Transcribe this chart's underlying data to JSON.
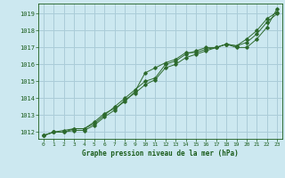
{
  "title": "Graphe pression niveau de la mer (hPa)",
  "bg_color": "#cce8f0",
  "grid_color": "#aaccd8",
  "line_color": "#2d6a2d",
  "text_color": "#1a5c1a",
  "xlim": [
    -0.5,
    23.5
  ],
  "ylim": [
    1011.6,
    1019.6
  ],
  "yticks": [
    1012,
    1013,
    1014,
    1015,
    1016,
    1017,
    1018,
    1019
  ],
  "xticks": [
    0,
    1,
    2,
    3,
    4,
    5,
    6,
    7,
    8,
    9,
    10,
    11,
    12,
    13,
    14,
    15,
    16,
    17,
    18,
    19,
    20,
    21,
    22,
    23
  ],
  "series1": {
    "x": [
      0,
      1,
      2,
      3,
      4,
      5,
      6,
      7,
      8,
      9,
      10,
      11,
      12,
      13,
      14,
      15,
      16,
      17,
      18,
      19,
      20,
      21,
      22,
      23
    ],
    "y": [
      1011.8,
      1012.0,
      1012.0,
      1012.2,
      1012.2,
      1012.5,
      1013.0,
      1013.5,
      1014.0,
      1014.5,
      1015.0,
      1015.2,
      1016.0,
      1016.2,
      1016.6,
      1016.8,
      1017.0,
      1017.0,
      1017.2,
      1017.0,
      1017.0,
      1017.5,
      1018.2,
      1019.3
    ]
  },
  "series2": {
    "x": [
      0,
      1,
      2,
      3,
      4,
      5,
      6,
      7,
      8,
      9,
      10,
      11,
      12,
      13,
      14,
      15,
      16,
      17,
      18,
      19,
      20,
      21,
      22,
      23
    ],
    "y": [
      1011.8,
      1012.0,
      1012.1,
      1012.2,
      1012.2,
      1012.6,
      1013.1,
      1013.4,
      1013.8,
      1014.4,
      1015.5,
      1015.8,
      1016.1,
      1016.3,
      1016.7,
      1016.7,
      1016.9,
      1017.0,
      1017.2,
      1017.1,
      1017.3,
      1017.8,
      1018.5,
      1019.0
    ]
  },
  "series3": {
    "x": [
      0,
      1,
      2,
      3,
      4,
      5,
      6,
      7,
      8,
      9,
      10,
      11,
      12,
      13,
      14,
      15,
      16,
      17,
      18,
      19,
      20,
      21,
      22,
      23
    ],
    "y": [
      1011.8,
      1012.0,
      1012.0,
      1012.1,
      1012.1,
      1012.4,
      1012.9,
      1013.3,
      1013.9,
      1014.3,
      1014.8,
      1015.1,
      1015.8,
      1016.0,
      1016.4,
      1016.6,
      1016.8,
      1017.0,
      1017.2,
      1017.1,
      1017.5,
      1018.0,
      1018.7,
      1019.1
    ]
  }
}
